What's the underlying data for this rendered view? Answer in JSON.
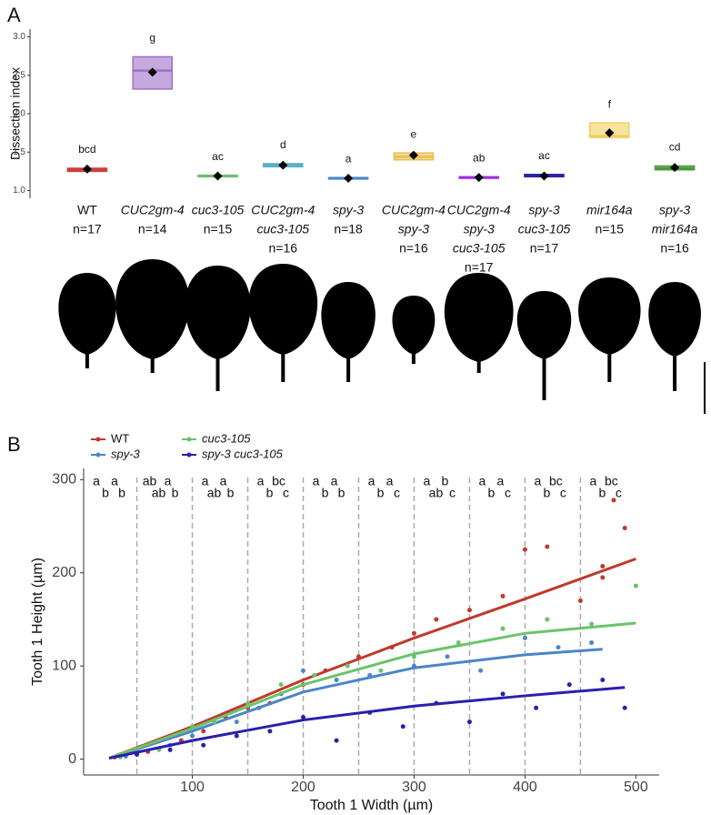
{
  "chart_data": [
    {
      "type": "box",
      "label": "A",
      "y_label": "Dissection index",
      "ylim": [
        0.9,
        3.1
      ],
      "yticks": [
        {
          "value": 1,
          "label": "1.0"
        },
        {
          "value": 1.5,
          "label": "1.5"
        },
        {
          "value": 2,
          "label": "2.0"
        },
        {
          "value": 2.5,
          "label": "2.5"
        },
        {
          "value": 3,
          "label": "3.0"
        }
      ],
      "categories": [
        [
          "WT"
        ],
        [
          "CUC2gm-4"
        ],
        [
          "cuc3-105"
        ],
        [
          "CUC2gm-4",
          "cuc3-105"
        ],
        [
          "spy-3"
        ],
        [
          "CUC2gm-4",
          "spy-3"
        ],
        [
          "CUC2gm-4",
          "spy-3",
          "cuc3-105"
        ],
        [
          "spy-3",
          "cuc3-105"
        ],
        [
          "mir164a"
        ],
        [
          "spy-3",
          "mir164a"
        ]
      ],
      "italic": [
        false,
        true,
        true,
        true,
        true,
        true,
        true,
        true,
        true,
        true
      ],
      "n_labels": [
        "n=17",
        "n=14",
        "n=15",
        "n=16",
        "n=18",
        "n=16",
        "n=17",
        "n=17",
        "n=15",
        "n=16"
      ],
      "letters": [
        "bcd",
        "g",
        "ac",
        "d",
        "a",
        "e",
        "ab",
        "ac",
        "f",
        "cd"
      ],
      "q1": [
        1.25,
        2.32,
        1.18,
        1.31,
        1.15,
        1.4,
        1.16,
        1.18,
        1.69,
        1.27
      ],
      "median": [
        1.27,
        2.56,
        1.19,
        1.33,
        1.16,
        1.44,
        1.17,
        1.19,
        1.71,
        1.29
      ],
      "q3": [
        1.29,
        2.74,
        1.2,
        1.35,
        1.17,
        1.49,
        1.18,
        1.21,
        1.88,
        1.32
      ],
      "mean": [
        1.28,
        2.54,
        1.19,
        1.33,
        1.16,
        1.46,
        1.17,
        1.19,
        1.75,
        1.3
      ],
      "colors": [
        "#c8413a",
        "#a070c8",
        "#6cc06c",
        "#5ab0c4",
        "#4a88d0",
        "#e8c050",
        "#9b30e0",
        "#2a22a8",
        "#f0d060",
        "#4a9a3a"
      ]
    },
    {
      "type": "scatter",
      "label": "B",
      "x_label": "Tooth 1 Width (µm)",
      "y_label": "Tooth 1 Height (µm)",
      "xlim": [
        2,
        521
      ],
      "ylim": [
        -17,
        312
      ],
      "xticks": [
        100,
        200,
        300,
        400,
        500
      ],
      "yticks": [
        0,
        100,
        200,
        300
      ],
      "vlines": [
        50,
        100,
        150,
        200,
        250,
        300,
        350,
        400,
        450
      ],
      "series": [
        {
          "name": "WT",
          "color": "#c0392b",
          "italic": false,
          "x": [
            30,
            60,
            90,
            110,
            130,
            150,
            170,
            200,
            220,
            250,
            280,
            300,
            320,
            350,
            380,
            400,
            420,
            450,
            470,
            480,
            490,
            470
          ],
          "y": [
            2,
            8,
            20,
            30,
            45,
            55,
            60,
            80,
            95,
            110,
            120,
            135,
            150,
            160,
            175,
            225,
            228,
            170,
            195,
            278,
            248,
            207
          ],
          "fit_x": [
            25,
            100,
            200,
            300,
            400,
            500
          ],
          "fit_y": [
            1,
            35,
            85,
            130,
            172,
            215
          ],
          "letters": [
            "a",
            "ab",
            "a",
            "a",
            "a",
            "a",
            "a",
            "a",
            "a",
            "a"
          ]
        },
        {
          "name": "spy-3",
          "color": "#4a86c8",
          "italic": true,
          "x": [
            40,
            80,
            100,
            140,
            160,
            180,
            200,
            230,
            260,
            300,
            330,
            360,
            400,
            430,
            460
          ],
          "y": [
            3,
            15,
            25,
            40,
            55,
            70,
            95,
            85,
            90,
            100,
            110,
            95,
            130,
            120,
            125
          ],
          "fit_x": [
            25,
            100,
            200,
            300,
            400,
            470
          ],
          "fit_y": [
            1,
            30,
            72,
            98,
            112,
            118
          ],
          "letters": [
            "a",
            "a",
            "a",
            "bc",
            "a",
            "a",
            "b",
            "a",
            "bc",
            "bc"
          ]
        },
        {
          "name": "cuc3-105",
          "color": "#6ac46a",
          "italic": true,
          "x": [
            35,
            70,
            100,
            120,
            150,
            180,
            210,
            240,
            270,
            300,
            340,
            380,
            420,
            460,
            500
          ],
          "y": [
            2,
            10,
            35,
            40,
            60,
            80,
            90,
            100,
            95,
            110,
            125,
            140,
            150,
            145,
            186
          ],
          "fit_x": [
            25,
            100,
            200,
            300,
            400,
            500
          ],
          "fit_y": [
            1,
            33,
            80,
            113,
            135,
            146
          ],
          "letters": [
            "b",
            "ab",
            "ab",
            "b",
            "b",
            "b",
            "ab",
            "b",
            "b",
            "b"
          ]
        },
        {
          "name": "spy-3 cuc3-105",
          "color": "#2a1fae",
          "italic": true,
          "x": [
            50,
            80,
            110,
            140,
            170,
            200,
            230,
            260,
            290,
            320,
            350,
            380,
            410,
            440,
            470,
            490
          ],
          "y": [
            5,
            10,
            15,
            25,
            30,
            45,
            20,
            50,
            35,
            60,
            40,
            70,
            55,
            80,
            85,
            55
          ],
          "fit_x": [
            25,
            100,
            200,
            300,
            400,
            490
          ],
          "fit_y": [
            1,
            20,
            42,
            57,
            68,
            77
          ],
          "letters": [
            "b",
            "b",
            "b",
            "c",
            "b",
            "c",
            "c",
            "c",
            "c",
            "c"
          ]
        }
      ]
    }
  ]
}
